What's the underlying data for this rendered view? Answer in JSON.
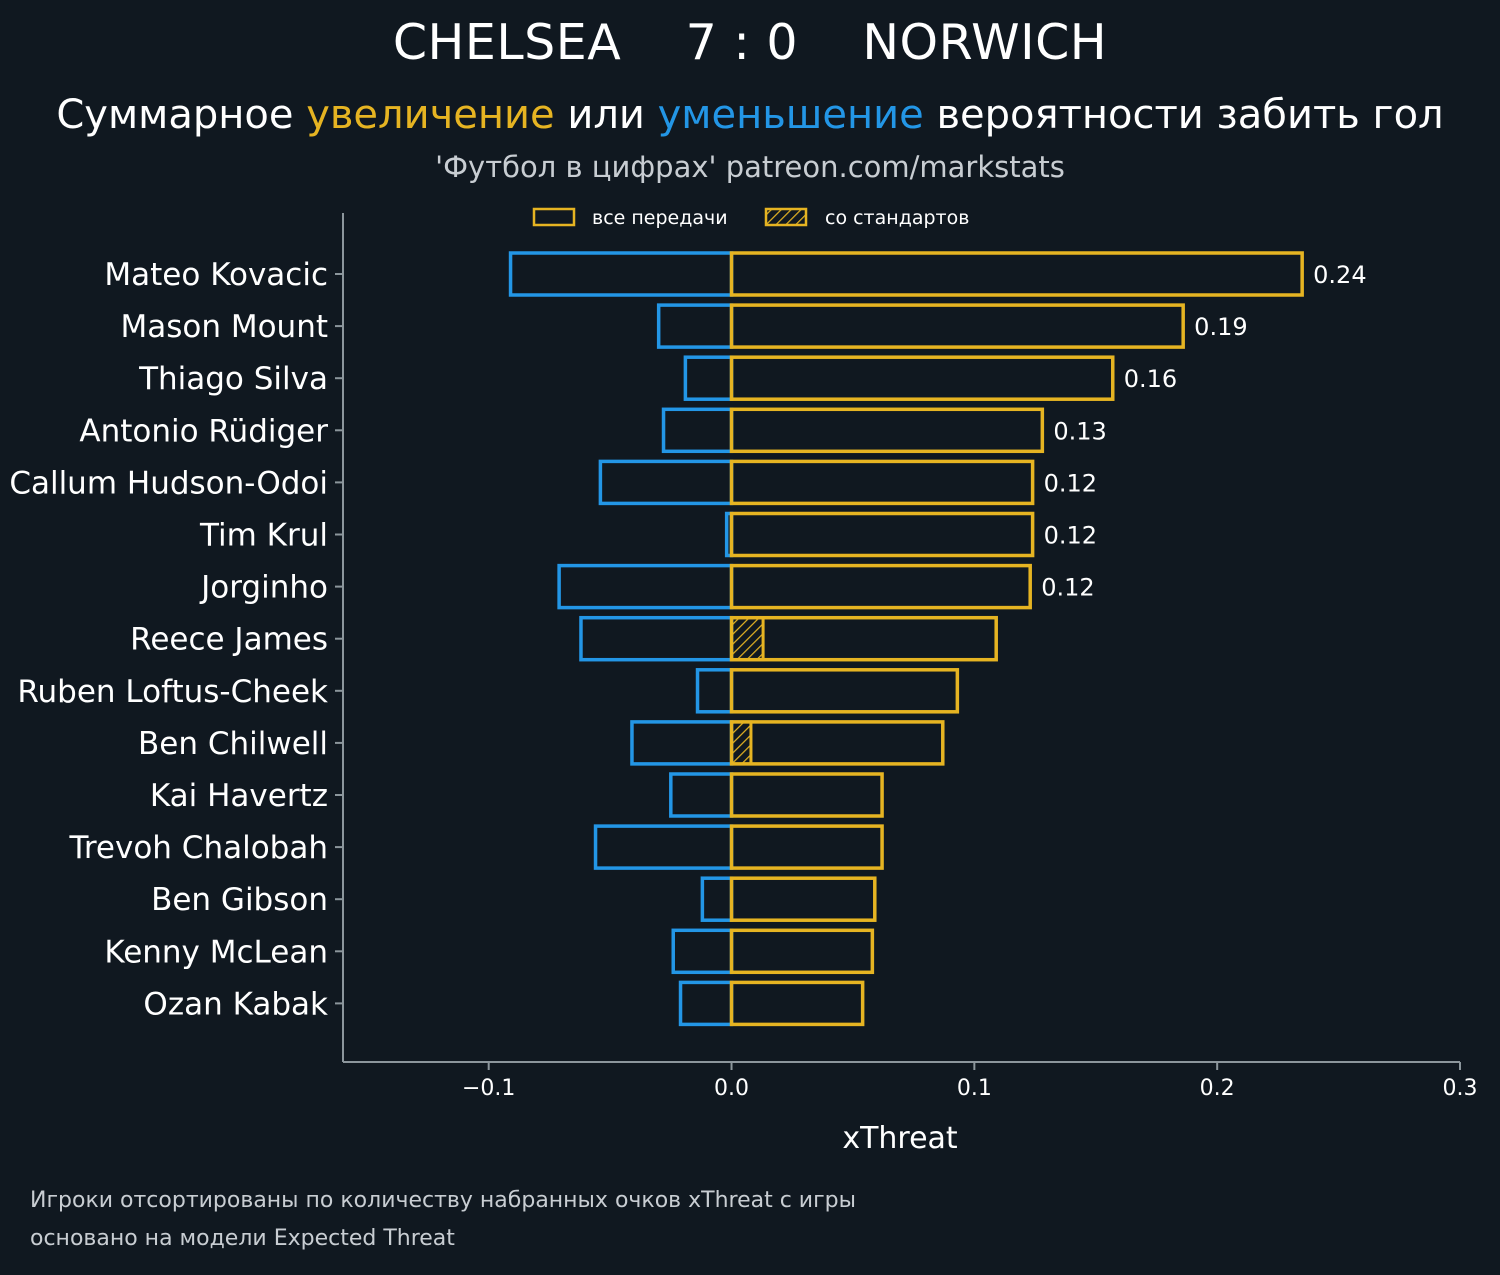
{
  "header": {
    "home_team": "CHELSEA",
    "score": "7 : 0",
    "away_team": "NORWICH",
    "subtitle_part1": "Суммарное ",
    "subtitle_increase": "увеличение",
    "subtitle_part2": " или ",
    "subtitle_decrease": "уменьшение",
    "subtitle_part3": " вероятности забить гол",
    "source": "'Футбол в цифрах' patreon.com/markstats"
  },
  "colors": {
    "background": "#101820",
    "increase": "#e6b422",
    "decrease": "#2396e6",
    "axis": "#8c969c",
    "text": "#ffffff",
    "muted": "#c8cdd2"
  },
  "legend": {
    "all_passes": "все передачи",
    "set_pieces": "со стандартов"
  },
  "footnote": {
    "line1": "Игроки отсортированы по количеству набранных очков xThreat с игры",
    "line2": "основано на модели Expected Threat"
  },
  "chart_data": {
    "type": "bar",
    "orientation": "horizontal",
    "xlabel": "xThreat",
    "xlim": [
      -0.16,
      0.3
    ],
    "xticks": [
      -0.1,
      0.0,
      0.1,
      0.2,
      0.3
    ],
    "xtick_labels": [
      "−0.1",
      "0.0",
      "0.1",
      "0.2",
      "0.3"
    ],
    "legend_position": "top-center",
    "categories": [
      "Mateo Kovacic",
      "Mason Mount",
      "Thiago Silva",
      "Antonio Rüdiger",
      "Callum Hudson-Odoi",
      "Tim Krul",
      "Jorginho",
      "Reece James",
      "Ruben Loftus-Cheek",
      "Ben Chilwell",
      "Kai Havertz",
      "Trevoh Chalobah",
      "Ben Gibson",
      "Kenny McLean",
      "Ozan Kabak"
    ],
    "series": [
      {
        "name": "все передачи",
        "positive": [
          0.235,
          0.186,
          0.157,
          0.128,
          0.124,
          0.124,
          0.123,
          0.109,
          0.093,
          0.087,
          0.062,
          0.062,
          0.059,
          0.058,
          0.054
        ],
        "negative": [
          -0.091,
          -0.03,
          -0.019,
          -0.028,
          -0.054,
          -0.002,
          -0.071,
          -0.062,
          -0.014,
          -0.041,
          -0.025,
          -0.056,
          -0.012,
          -0.024,
          -0.021
        ]
      },
      {
        "name": "со стандартов",
        "positive": [
          0,
          0,
          0,
          0,
          0,
          0,
          0,
          0.013,
          0,
          0.008,
          0,
          0,
          0,
          0,
          0
        ]
      }
    ],
    "value_labels": [
      "0.24",
      "0.19",
      "0.16",
      "0.13",
      "0.12",
      "0.12",
      "0.12",
      "",
      "",
      "",
      "",
      "",
      "",
      "",
      ""
    ]
  }
}
